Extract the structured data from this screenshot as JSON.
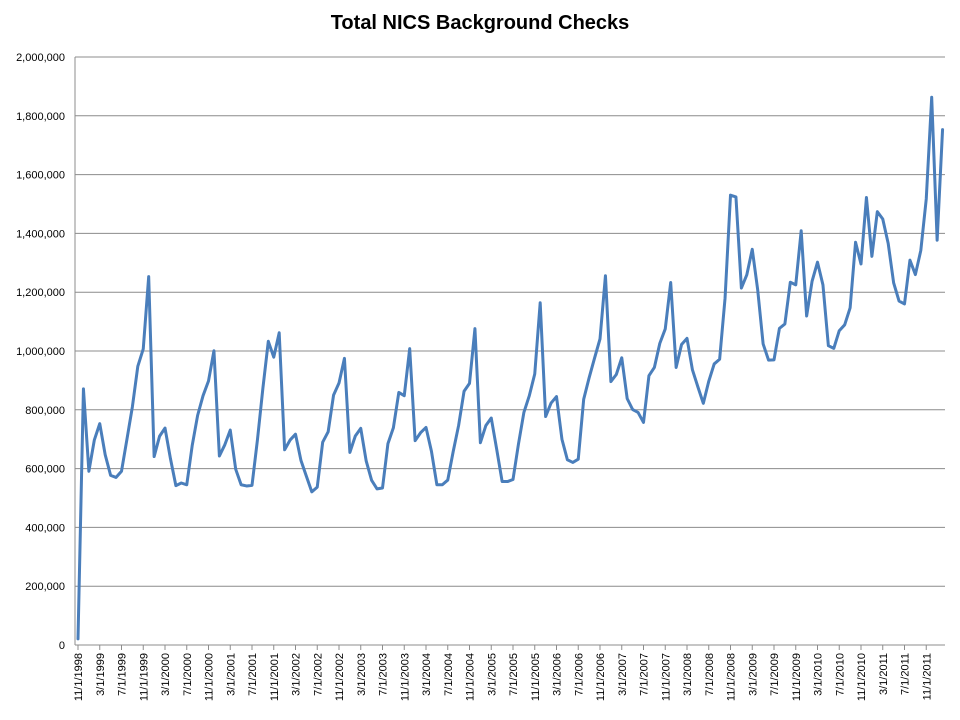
{
  "chart_data": {
    "type": "line",
    "title": "Total NICS Background Checks",
    "xlabel": "",
    "ylabel": "",
    "ylim": [
      0,
      2000000
    ],
    "grid": true,
    "legend": "none",
    "line_color": "#4a7ebb",
    "y_ticks": [
      "0",
      "200,000",
      "400,000",
      "600,000",
      "800,000",
      "1,000,000",
      "1,200,000",
      "1,400,000",
      "1,600,000",
      "1,800,000",
      "2,000,000"
    ],
    "x_ticks": [
      "11/1/1998",
      "3/1/1999",
      "7/1/1999",
      "11/1/1999",
      "3/1/2000",
      "7/1/2000",
      "11/1/2000",
      "3/1/2001",
      "7/1/2001",
      "11/1/2001",
      "3/1/2002",
      "7/1/2002",
      "11/1/2002",
      "3/1/2003",
      "7/1/2003",
      "11/1/2003",
      "3/1/2004",
      "7/1/2004",
      "11/1/2004",
      "3/1/2005",
      "7/1/2005",
      "11/1/2005",
      "3/1/2006",
      "7/1/2006",
      "11/1/2006",
      "3/1/2007",
      "7/1/2007",
      "11/1/2007",
      "3/1/2008",
      "7/1/2008",
      "11/1/2008",
      "3/1/2009",
      "7/1/2009",
      "11/1/2009",
      "3/1/2010",
      "7/1/2010",
      "11/1/2010",
      "3/1/2011",
      "7/1/2011",
      "11/1/2011"
    ],
    "x": [
      "11/1998",
      "12/1998",
      "1/1999",
      "2/1999",
      "3/1999",
      "4/1999",
      "5/1999",
      "6/1999",
      "7/1999",
      "8/1999",
      "9/1999",
      "10/1999",
      "11/1999",
      "12/1999",
      "1/2000",
      "2/2000",
      "3/2000",
      "4/2000",
      "5/2000",
      "6/2000",
      "7/2000",
      "8/2000",
      "9/2000",
      "10/2000",
      "11/2000",
      "12/2000",
      "1/2001",
      "2/2001",
      "3/2001",
      "4/2001",
      "5/2001",
      "6/2001",
      "7/2001",
      "8/2001",
      "9/2001",
      "10/2001",
      "11/2001",
      "12/2001",
      "1/2002",
      "2/2002",
      "3/2002",
      "4/2002",
      "5/2002",
      "6/2002",
      "7/2002",
      "8/2002",
      "9/2002",
      "10/2002",
      "11/2002",
      "12/2002",
      "1/2003",
      "2/2003",
      "3/2003",
      "4/2003",
      "5/2003",
      "6/2003",
      "7/2003",
      "8/2003",
      "9/2003",
      "10/2003",
      "11/2003",
      "12/2003",
      "1/2004",
      "2/2004",
      "3/2004",
      "4/2004",
      "5/2004",
      "6/2004",
      "7/2004",
      "8/2004",
      "9/2004",
      "10/2004",
      "11/2004",
      "12/2004",
      "1/2005",
      "2/2005",
      "3/2005",
      "4/2005",
      "5/2005",
      "6/2005",
      "7/2005",
      "8/2005",
      "9/2005",
      "10/2005",
      "11/2005",
      "12/2005",
      "1/2006",
      "2/2006",
      "3/2006",
      "4/2006",
      "5/2006",
      "6/2006",
      "7/2006",
      "8/2006",
      "9/2006",
      "10/2006",
      "11/2006",
      "12/2006",
      "1/2007",
      "2/2007",
      "3/2007",
      "4/2007",
      "5/2007",
      "6/2007",
      "7/2007",
      "8/2007",
      "9/2007",
      "10/2007",
      "11/2007",
      "12/2007",
      "1/2008",
      "2/2008",
      "3/2008",
      "4/2008",
      "5/2008",
      "6/2008",
      "7/2008",
      "8/2008",
      "9/2008",
      "10/2008",
      "11/2008",
      "12/2008",
      "1/2009",
      "2/2009",
      "3/2009",
      "4/2009",
      "5/2009",
      "6/2009",
      "7/2009",
      "8/2009",
      "9/2009",
      "10/2009",
      "11/2009",
      "12/2009",
      "1/2010",
      "2/2010",
      "3/2010",
      "4/2010",
      "5/2010",
      "6/2010",
      "7/2010",
      "8/2010",
      "9/2010",
      "10/2010",
      "11/2010",
      "12/2010",
      "1/2011",
      "2/2011",
      "3/2011",
      "4/2011",
      "5/2011",
      "6/2011",
      "7/2011",
      "8/2011",
      "9/2011",
      "10/2011",
      "11/2011",
      "12/2011",
      "1/2012",
      "2/2012"
    ],
    "series": [
      {
        "values": [
          21000,
          871000,
          591000,
          697000,
          753000,
          647000,
          577000,
          570000,
          591000,
          700000,
          810000,
          948000,
          1007000,
          1253000,
          641000,
          710000,
          738000,
          634000,
          542000,
          551000,
          545000,
          678000,
          781000,
          848000,
          898000,
          1001000,
          643000,
          681000,
          731000,
          598000,
          545000,
          541000,
          543000,
          698000,
          873000,
          1033000,
          979000,
          1062000,
          664000,
          697000,
          717000,
          628000,
          574000,
          521000,
          537000,
          690000,
          725000,
          850000,
          891000,
          975000,
          655000,
          711000,
          737000,
          626000,
          560000,
          531000,
          534000,
          685000,
          739000,
          859000,
          848000,
          1008000,
          695000,
          722000,
          740000,
          659000,
          545000,
          545000,
          561000,
          658000,
          747000,
          863000,
          890000,
          1076000,
          688000,
          746000,
          772000,
          666000,
          556000,
          556000,
          563000,
          683000,
          791000,
          848000,
          922000,
          1164000,
          777000,
          823000,
          845000,
          700000,
          630000,
          621000,
          632000,
          836000,
          909000,
          976000,
          1041000,
          1256000,
          896000,
          920000,
          977000,
          838000,
          801000,
          791000,
          757000,
          916000,
          944000,
          1026000,
          1075000,
          1233000,
          944000,
          1022000,
          1043000,
          936000,
          878000,
          822000,
          897000,
          956000,
          972000,
          1180000,
          1530000,
          1524000,
          1214000,
          1259000,
          1346000,
          1208000,
          1024000,
          969000,
          970000,
          1077000,
          1092000,
          1234000,
          1225000,
          1409000,
          1119000,
          1237000,
          1302000,
          1225000,
          1018000,
          1009000,
          1069000,
          1089000,
          1147000,
          1370000,
          1296000,
          1522000,
          1322000,
          1474000,
          1449000,
          1366000,
          1232000,
          1170000,
          1160000,
          1309000,
          1260000,
          1342000,
          1517000,
          1863000,
          1377000,
          1753000
        ]
      }
    ]
  }
}
